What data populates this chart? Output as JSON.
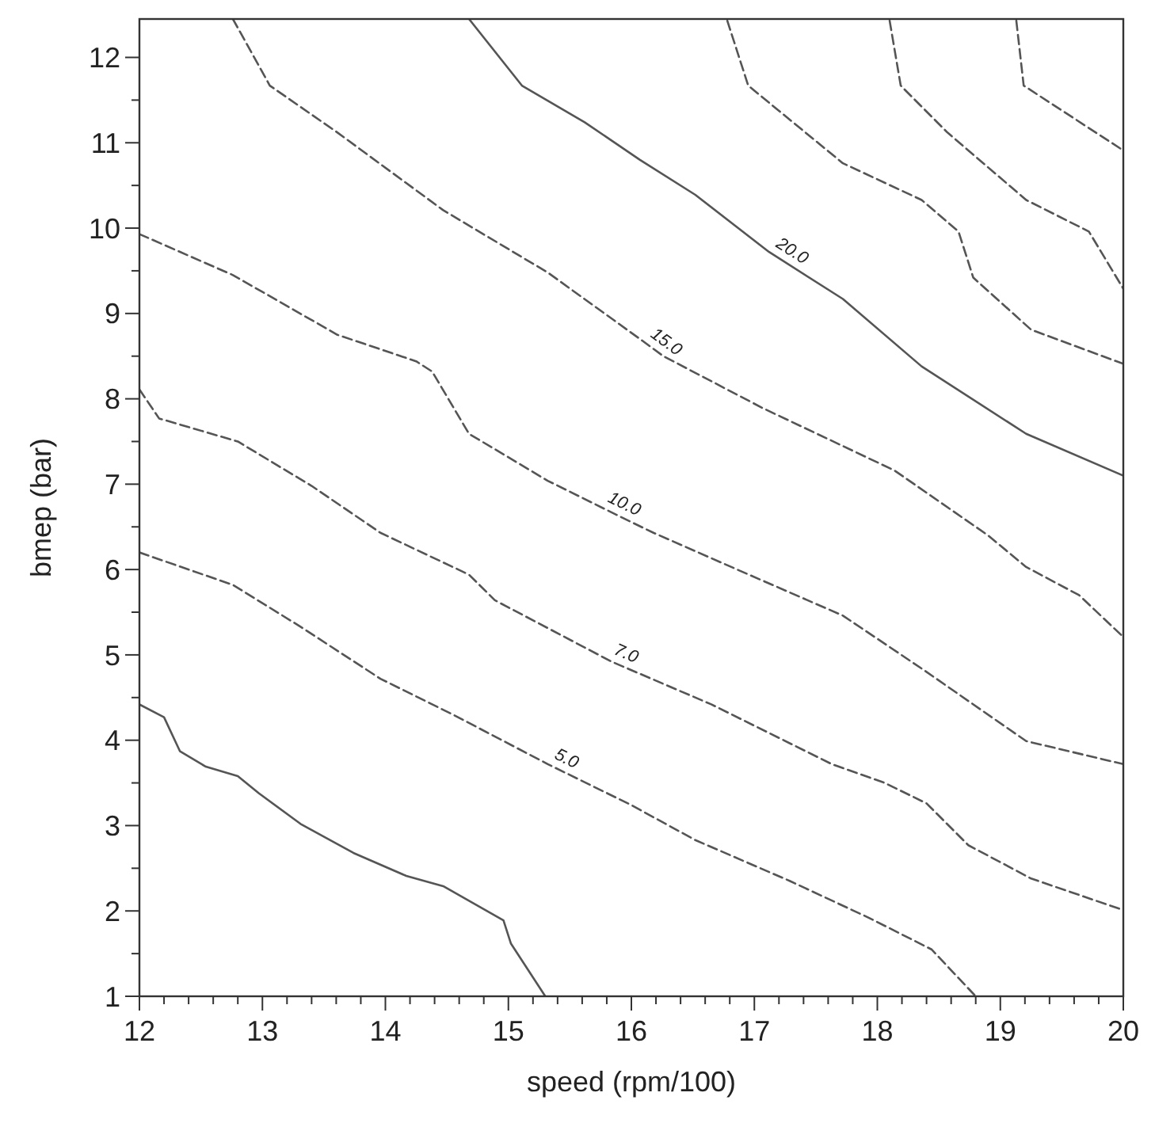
{
  "chart_data": {
    "type": "line",
    "xlabel": "speed (rpm/100)",
    "ylabel": "bmep (bar)",
    "xlim": [
      12,
      20
    ],
    "ylim": [
      1,
      12.45
    ],
    "xticks": [
      12,
      {
        "value": 12.2,
        "label": null
      },
      {
        "value": 12.4,
        "label": null
      },
      {
        "value": 12.6,
        "label": null
      },
      {
        "value": 12.8,
        "label": null
      },
      13,
      {
        "value": 13.2,
        "label": null
      },
      {
        "value": 13.4,
        "label": null
      },
      {
        "value": 13.6,
        "label": null
      },
      {
        "value": 13.8,
        "label": null
      },
      14,
      {
        "value": 14.2,
        "label": null
      },
      {
        "value": 14.4,
        "label": null
      },
      {
        "value": 14.6,
        "label": null
      },
      {
        "value": 14.8,
        "label": null
      },
      15,
      {
        "value": 15.2,
        "label": null
      },
      {
        "value": 15.4,
        "label": null
      },
      {
        "value": 15.6,
        "label": null
      },
      {
        "value": 15.8,
        "label": null
      },
      16,
      {
        "value": 16.2,
        "label": null
      },
      {
        "value": 16.4,
        "label": null
      },
      {
        "value": 16.6,
        "label": null
      },
      {
        "value": 16.8,
        "label": null
      },
      17,
      {
        "value": 17.2,
        "label": null
      },
      {
        "value": 17.4,
        "label": null
      },
      {
        "value": 17.6,
        "label": null
      },
      {
        "value": 17.8,
        "label": null
      },
      18,
      {
        "value": 18.2,
        "label": null
      },
      {
        "value": 18.4,
        "label": null
      },
      {
        "value": 18.6,
        "label": null
      },
      {
        "value": 18.8,
        "label": null
      },
      19,
      {
        "value": 19.2,
        "label": null
      },
      {
        "value": 19.4,
        "label": null
      },
      {
        "value": 19.6,
        "label": null
      },
      {
        "value": 19.8,
        "label": null
      },
      20
    ],
    "yticks": [
      1,
      {
        "value": 1.5,
        "label": null
      },
      2,
      {
        "value": 2.5,
        "label": null
      },
      3,
      {
        "value": 3.5,
        "label": null
      },
      4,
      {
        "value": 4.5,
        "label": null
      },
      5,
      {
        "value": 5.5,
        "label": null
      },
      6,
      {
        "value": 6.5,
        "label": null
      },
      7,
      {
        "value": 7.5,
        "label": null
      },
      8,
      {
        "value": 8.5,
        "label": null
      },
      9,
      {
        "value": 9.5,
        "label": null
      },
      10,
      {
        "value": 10.5,
        "label": null
      },
      11,
      {
        "value": 11.5,
        "label": null
      },
      12
    ],
    "grid": false,
    "marker": "none",
    "series": [
      {
        "color": "#555555",
        "line_style": "solid",
        "x": [
          12.0,
          12.2,
          12.33,
          12.54,
          12.8,
          12.97,
          13.31,
          13.74,
          14.17,
          14.47,
          14.96,
          15.02,
          15.3
        ],
        "values": [
          4.42,
          4.27,
          3.87,
          3.69,
          3.58,
          3.38,
          3.02,
          2.68,
          2.41,
          2.29,
          1.89,
          1.62,
          1.0
        ]
      },
      {
        "name": "5.0",
        "color": "#555555",
        "line_style": "dashed",
        "x": [
          12.0,
          12.76,
          13.31,
          13.96,
          14.55,
          15.32,
          16.0,
          16.52,
          17.29,
          17.93,
          18.44,
          18.8
        ],
        "values": [
          6.2,
          5.82,
          5.33,
          4.72,
          4.3,
          3.72,
          3.24,
          2.83,
          2.35,
          1.92,
          1.55,
          1.0
        ]
      },
      {
        "name": "7.0",
        "color": "#555555",
        "line_style": "dashed",
        "x": [
          12.0,
          12.16,
          12.8,
          13.4,
          13.96,
          14.68,
          14.89,
          15.84,
          16.65,
          17.63,
          18.06,
          18.4,
          18.74,
          19.25,
          20.0
        ],
        "values": [
          8.11,
          7.77,
          7.5,
          6.98,
          6.43,
          5.94,
          5.64,
          4.92,
          4.42,
          3.72,
          3.5,
          3.26,
          2.77,
          2.38,
          2.01
        ]
      },
      {
        "name": "10.0",
        "color": "#555555",
        "line_style": "dashed",
        "x": [
          12.0,
          12.76,
          13.61,
          14.25,
          14.38,
          14.68,
          15.32,
          15.88,
          16.18,
          16.86,
          17.72,
          18.36,
          19.21,
          20.0
        ],
        "values": [
          9.93,
          9.45,
          8.75,
          8.44,
          8.32,
          7.59,
          7.04,
          6.64,
          6.43,
          6.0,
          5.46,
          4.84,
          3.99,
          3.72
        ]
      },
      {
        "name": "15.0",
        "color": "#555555",
        "line_style": "dashed",
        "x": [
          12.76,
          13.06,
          13.61,
          14.47,
          15.32,
          16.09,
          16.26,
          17.07,
          18.14,
          18.9,
          19.21,
          19.64,
          20.0
        ],
        "values": [
          12.45,
          11.67,
          11.12,
          10.21,
          9.48,
          8.68,
          8.5,
          7.89,
          7.16,
          6.4,
          6.03,
          5.7,
          5.21
        ]
      },
      {
        "name": "20.0",
        "color": "#555555",
        "line_style": "solid",
        "x": [
          14.68,
          15.11,
          15.62,
          16.07,
          16.52,
          17.12,
          17.72,
          18.36,
          19.21,
          20.0
        ],
        "values": [
          12.45,
          11.67,
          11.24,
          10.8,
          10.39,
          9.72,
          9.17,
          8.38,
          7.59,
          7.1
        ]
      },
      {
        "color": "#555555",
        "line_style": "dashed",
        "x": [
          16.78,
          16.95,
          17.72,
          18.36,
          18.66,
          18.78,
          19.25,
          20.0
        ],
        "values": [
          12.43,
          11.67,
          10.76,
          10.33,
          9.96,
          9.42,
          8.81,
          8.41
        ]
      },
      {
        "color": "#555555",
        "line_style": "dashed",
        "x": [
          18.1,
          18.19,
          18.57,
          19.21,
          19.72,
          20.0
        ],
        "values": [
          12.43,
          11.67,
          11.12,
          10.33,
          9.96,
          9.29
        ]
      },
      {
        "color": "#555555",
        "line_style": "dashed",
        "x": [
          19.13,
          19.19,
          20.0
        ],
        "values": [
          12.43,
          11.67,
          10.91
        ]
      }
    ]
  }
}
